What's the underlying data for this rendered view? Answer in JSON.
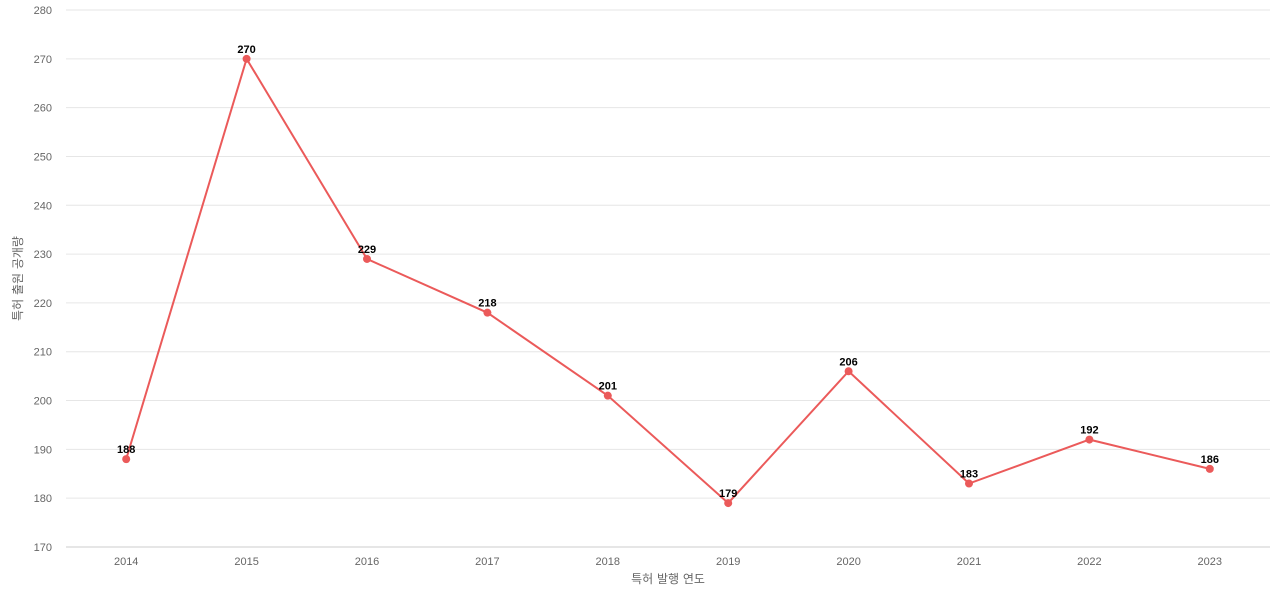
{
  "chart_data": {
    "type": "line",
    "x": [
      "2014",
      "2015",
      "2016",
      "2017",
      "2018",
      "2019",
      "2020",
      "2021",
      "2022",
      "2023"
    ],
    "series": [
      {
        "values": [
          188,
          270,
          229,
          218,
          201,
          179,
          206,
          183,
          192,
          186
        ]
      }
    ],
    "title": "",
    "xlabel": "특허 발행 연도",
    "ylabel": "특허 출원 공개량",
    "ylim": [
      170,
      280
    ],
    "yticks": [
      170,
      180,
      190,
      200,
      210,
      220,
      230,
      240,
      250,
      260,
      270,
      280
    ],
    "grid": true,
    "legend": "none",
    "colors": {
      "line": "#eb5a5a",
      "grid": "#e6e6e6",
      "axis_text": "#666666"
    }
  }
}
